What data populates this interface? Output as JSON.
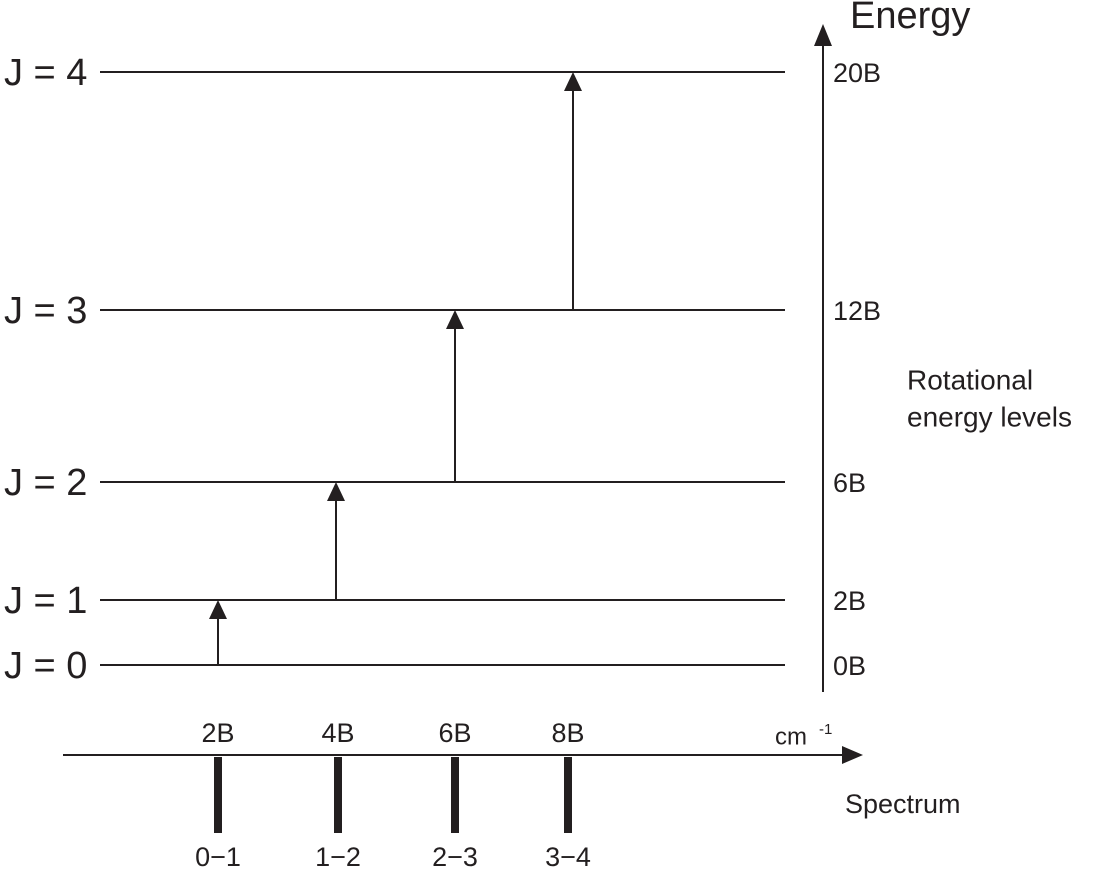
{
  "axis_title": "Energy",
  "levels": [
    {
      "label": "J = 0",
      "energy": "0B"
    },
    {
      "label": "J = 1",
      "energy": "2B"
    },
    {
      "label": "J = 2",
      "energy": "6B"
    },
    {
      "label": "J = 3",
      "energy": "12B"
    },
    {
      "label": "J = 4",
      "energy": "20B"
    }
  ],
  "side_label": [
    "Rotational",
    "energy levels"
  ],
  "spectrum": {
    "unit": "cm",
    "unit_exponent": "-1",
    "title": "Spectrum",
    "lines": [
      {
        "position": "2B",
        "transition": "0−1"
      },
      {
        "position": "4B",
        "transition": "1−2"
      },
      {
        "position": "6B",
        "transition": "2−3"
      },
      {
        "position": "8B",
        "transition": "3−4"
      }
    ]
  }
}
